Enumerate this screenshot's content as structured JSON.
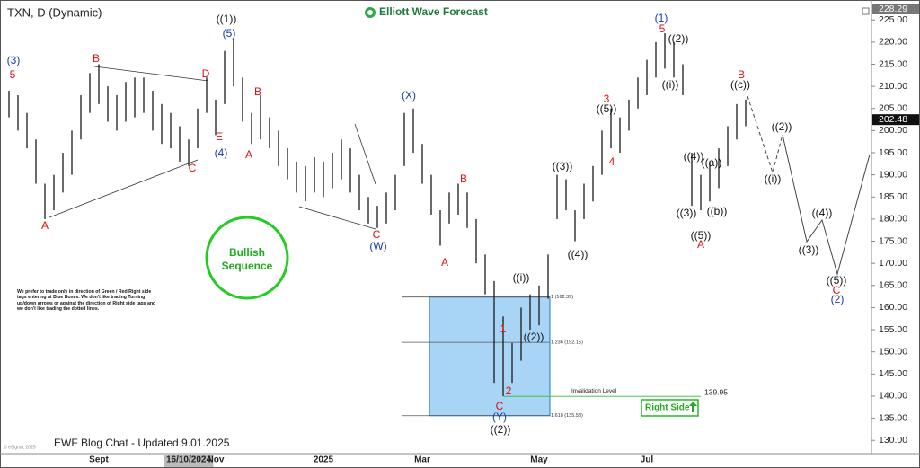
{
  "chart_data": {
    "type": "range-bar",
    "title": "TXN, D (Dynamic)",
    "brand": "Elliott Wave Forecast",
    "footer": "EWF Blog Chat - Updated 9.01.2025",
    "copyright": "© eSignal, 2025",
    "sequence_label": "Bullish Sequence",
    "disclaimer": "We prefer to trade only in direction of Green / Red Right side tags entering at Blue Boxes. We don't like trading Turning up/down arrows or against the direction of Right side tags and we don't like trading the dotted lines.",
    "right_side_label": "Right Side",
    "color": "#1a1a1a",
    "categories": [
      null,
      null,
      null,
      null,
      null,
      null,
      null,
      null,
      null,
      null,
      "Sept",
      null,
      null,
      null,
      null,
      null,
      null,
      null,
      null,
      null,
      "16/10/2024",
      null,
      null,
      "Nov",
      null,
      null,
      null,
      null,
      null,
      null,
      null,
      null,
      null,
      null,
      null,
      "2025",
      null,
      null,
      null,
      null,
      null,
      null,
      null,
      null,
      null,
      null,
      "Mar",
      null,
      null,
      null,
      null,
      null,
      null,
      null,
      null,
      null,
      null,
      null,
      null,
      "May",
      null,
      null,
      null,
      null,
      null,
      null,
      null,
      null,
      null,
      null,
      null,
      "Jul",
      null,
      null,
      null,
      null,
      null,
      null,
      null,
      null,
      null,
      null,
      null
    ],
    "high": [
      209,
      208,
      204,
      198,
      188,
      190,
      195,
      200,
      208,
      213,
      215,
      210,
      208,
      211,
      212,
      212,
      209,
      206,
      204,
      201,
      198,
      205,
      212,
      207,
      218,
      221,
      212,
      204,
      208,
      203,
      200,
      196,
      193,
      192,
      194,
      193,
      195,
      198,
      196,
      190,
      185,
      183,
      186,
      190,
      204,
      205,
      197,
      190,
      182,
      186,
      188,
      186,
      180,
      172,
      166,
      158,
      152,
      160,
      163,
      165,
      172,
      190,
      189,
      182,
      188,
      192,
      200,
      205,
      203,
      207,
      212,
      216,
      220,
      222,
      220,
      215,
      195,
      190,
      193,
      196,
      201,
      206,
      207
    ],
    "low": [
      203,
      200,
      196,
      188,
      180,
      182,
      186,
      190,
      198,
      204,
      206,
      202,
      200,
      202,
      203,
      204,
      200,
      197,
      196,
      193,
      192,
      196,
      204,
      199,
      206,
      210,
      202,
      197,
      198,
      196,
      192,
      189,
      186,
      184,
      186,
      185,
      187,
      189,
      186,
      182,
      179,
      178,
      179,
      182,
      192,
      195,
      188,
      181,
      174,
      179,
      181,
      178,
      170,
      163,
      143,
      140,
      143,
      148,
      155,
      156,
      162,
      180,
      182,
      175,
      180,
      184,
      190,
      196,
      195,
      200,
      205,
      208,
      212,
      214,
      212,
      208,
      183,
      182,
      184,
      187,
      192,
      198,
      201
    ],
    "ylim": [
      127,
      228.5
    ],
    "yticks": [
      {
        "value": 130,
        "label": "130.00"
      },
      {
        "value": 135,
        "label": "135.00"
      },
      {
        "value": 140,
        "label": "140.00"
      },
      {
        "value": 145,
        "label": "145.00"
      },
      {
        "value": 150,
        "label": "150.00"
      },
      {
        "value": 155,
        "label": "155.00"
      },
      {
        "value": 160,
        "label": "160.00"
      },
      {
        "value": 165,
        "label": "165.00"
      },
      {
        "value": 170,
        "label": "170.00"
      },
      {
        "value": 175,
        "label": "175.00"
      },
      {
        "value": 180,
        "label": "180.00"
      },
      {
        "value": 185,
        "label": "185.00"
      },
      {
        "value": 190,
        "label": "190.00"
      },
      {
        "value": 195,
        "label": "195.00"
      },
      {
        "value": 200,
        "label": "200.00"
      },
      {
        "value": 205,
        "label": "205.00"
      },
      {
        "value": 210,
        "label": "210.00"
      },
      {
        "value": 215,
        "label": "215.00"
      },
      {
        "value": 220,
        "label": "220.00"
      },
      {
        "value": 225,
        "label": "225.00"
      }
    ],
    "price_labels": [
      228.29,
      202.48
    ],
    "fib_levels": [
      {
        "value": 162.39,
        "label": "1 (162.39)"
      },
      {
        "value": 152.15,
        "label": "1.236 (152.15)"
      },
      {
        "value": 135.58,
        "label": "1.618 (135.58)"
      }
    ],
    "invalidation": {
      "label": "Invalidation Level",
      "value": 139.95
    },
    "wave_labels": [
      "(3)",
      "5",
      "B",
      "D",
      "((1))",
      "(5)",
      "B",
      "E",
      "(4)",
      "A",
      "C",
      "A",
      "(X)",
      "B",
      "C",
      "(W)",
      "A",
      "((3))",
      "((4))",
      "3",
      "((5))",
      "4",
      "(1)",
      "5",
      "((2))",
      "((i))",
      "B",
      "((c))",
      "((4))",
      "((a))",
      "((3))",
      "((b))",
      "((5))",
      "A",
      "((2))",
      "((i))",
      "((3))",
      "((4))",
      "((5))",
      "C",
      "(2)",
      "((i))",
      "1",
      "((2))",
      "2",
      "C",
      "(Y)",
      "((2))"
    ]
  }
}
